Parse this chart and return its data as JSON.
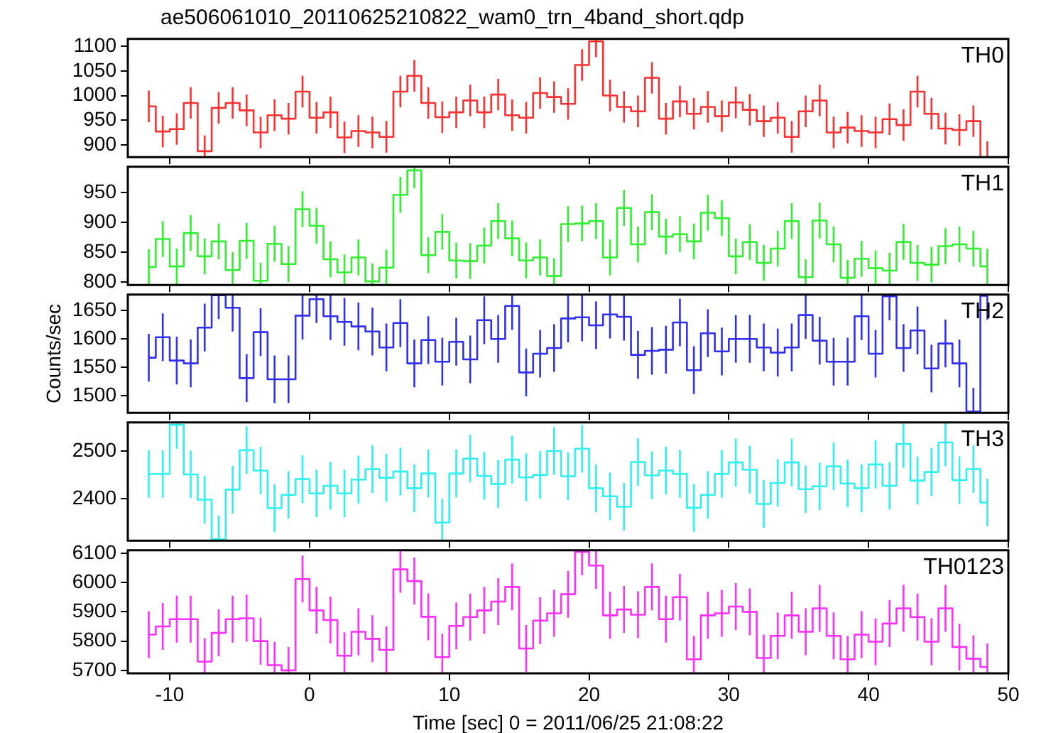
{
  "chart_data": [
    {
      "type": "step",
      "title": "ae506061010_20110625210822_wam0_trn_4band_short.qdp",
      "x": [
        -11.5,
        -10.5,
        -9.5,
        -8.5,
        -7.5,
        -6.5,
        -5.5,
        -4.5,
        -3.5,
        -2.5,
        -1.5,
        -0.5,
        0.5,
        1.5,
        2.5,
        3.5,
        4.5,
        5.5,
        6.5,
        7.5,
        8.5,
        9.5,
        10.5,
        11.5,
        12.5,
        13.5,
        14.5,
        15.5,
        16.5,
        17.5,
        18.5,
        19.5,
        20.5,
        21.5,
        22.5,
        23.5,
        24.5,
        25.5,
        26.5,
        27.5,
        28.5,
        29.5,
        30.5,
        31.5,
        32.5,
        33.5,
        34.5,
        35.5,
        36.5,
        37.5,
        38.5,
        39.5,
        40.5,
        41.5,
        42.5,
        43.5,
        44.5,
        45.5,
        46.5,
        47.5,
        48.5
      ],
      "xlim": [
        -13,
        50
      ],
      "xticks": [
        -10,
        0,
        10,
        20,
        30,
        40,
        50
      ],
      "ylim": [
        875,
        1115
      ],
      "yticks": [
        900,
        950,
        1000,
        1050,
        1100
      ],
      "tick_labels": "y",
      "grid": false,
      "series": [
        {
          "name": "TH0",
          "color": "#ff3030",
          "values": [
            978,
            927,
            932,
            985,
            887,
            975,
            985,
            970,
            925,
            960,
            953,
            1008,
            955,
            966,
            915,
            928,
            925,
            916,
            1008,
            1040,
            985,
            956,
            966,
            990,
            966,
            1002,
            960,
            955,
            1005,
            997,
            983,
            1062,
            1110,
            1000,
            977,
            968,
            1036,
            953,
            988,
            963,
            977,
            958,
            986,
            971,
            948,
            955,
            916,
            968,
            990,
            925,
            935,
            928,
            925,
            952,
            940,
            1008,
            963,
            933,
            930,
            948,
            875
          ],
          "errors": [
            32,
            32,
            32,
            32,
            32,
            32,
            32,
            32,
            32,
            32,
            32,
            32,
            32,
            32,
            32,
            32,
            32,
            32,
            32,
            32,
            32,
            32,
            32,
            32,
            32,
            32,
            32,
            32,
            32,
            32,
            32,
            32,
            32,
            32,
            32,
            32,
            32,
            32,
            32,
            32,
            32,
            32,
            32,
            32,
            32,
            32,
            32,
            32,
            32,
            32,
            32,
            32,
            32,
            32,
            32,
            32,
            32,
            32,
            32,
            32,
            32
          ]
        }
      ]
    },
    {
      "type": "step",
      "x": [
        -11.5,
        -10.5,
        -9.5,
        -8.5,
        -7.5,
        -6.5,
        -5.5,
        -4.5,
        -3.5,
        -2.5,
        -1.5,
        -0.5,
        0.5,
        1.5,
        2.5,
        3.5,
        4.5,
        5.5,
        6.5,
        7.5,
        8.5,
        9.5,
        10.5,
        11.5,
        12.5,
        13.5,
        14.5,
        15.5,
        16.5,
        17.5,
        18.5,
        19.5,
        20.5,
        21.5,
        22.5,
        23.5,
        24.5,
        25.5,
        26.5,
        27.5,
        28.5,
        29.5,
        30.5,
        31.5,
        32.5,
        33.5,
        34.5,
        35.5,
        36.5,
        37.5,
        38.5,
        39.5,
        40.5,
        41.5,
        42.5,
        43.5,
        44.5,
        45.5,
        46.5,
        47.5,
        48.5
      ],
      "xlim": [
        -13,
        50
      ],
      "xticks": [
        -10,
        0,
        10,
        20,
        30,
        40,
        50
      ],
      "ylim": [
        795,
        993
      ],
      "yticks": [
        800,
        850,
        900,
        950
      ],
      "tick_labels": "y",
      "grid": false,
      "series": [
        {
          "name": "TH1",
          "color": "#30f030",
          "values": [
            825,
            872,
            826,
            882,
            843,
            868,
            820,
            869,
            802,
            864,
            830,
            922,
            894,
            838,
            816,
            841,
            801,
            824,
            946,
            987,
            845,
            884,
            836,
            835,
            861,
            902,
            873,
            836,
            841,
            810,
            897,
            898,
            902,
            841,
            924,
            863,
            917,
            876,
            880,
            868,
            916,
            907,
            843,
            867,
            832,
            856,
            902,
            808,
            903,
            863,
            807,
            839,
            823,
            819,
            867,
            832,
            829,
            860,
            863,
            856,
            826
          ],
          "errors": [
            30,
            30,
            30,
            30,
            30,
            30,
            30,
            30,
            30,
            30,
            30,
            30,
            30,
            30,
            30,
            30,
            30,
            30,
            30,
            30,
            30,
            30,
            30,
            30,
            30,
            30,
            30,
            30,
            30,
            30,
            30,
            30,
            30,
            30,
            30,
            30,
            30,
            30,
            30,
            30,
            30,
            30,
            30,
            30,
            30,
            30,
            30,
            30,
            30,
            30,
            30,
            30,
            30,
            30,
            30,
            30,
            30,
            30,
            30,
            30,
            30
          ]
        }
      ]
    },
    {
      "type": "step",
      "ylabel": "Counts/sec",
      "x": [
        -11.5,
        -10.5,
        -9.5,
        -8.5,
        -7.5,
        -6.5,
        -5.5,
        -4.5,
        -3.5,
        -2.5,
        -1.5,
        -0.5,
        0.5,
        1.5,
        2.5,
        3.5,
        4.5,
        5.5,
        6.5,
        7.5,
        8.5,
        9.5,
        10.5,
        11.5,
        12.5,
        13.5,
        14.5,
        15.5,
        16.5,
        17.5,
        18.5,
        19.5,
        20.5,
        21.5,
        22.5,
        23.5,
        24.5,
        25.5,
        26.5,
        27.5,
        28.5,
        29.5,
        30.5,
        31.5,
        32.5,
        33.5,
        34.5,
        35.5,
        36.5,
        37.5,
        38.5,
        39.5,
        40.5,
        41.5,
        42.5,
        43.5,
        44.5,
        45.5,
        46.5,
        47.5,
        48.5
      ],
      "xlim": [
        -13,
        50
      ],
      "xticks": [
        -10,
        0,
        10,
        20,
        30,
        40,
        50
      ],
      "ylim": [
        1470,
        1678
      ],
      "yticks": [
        1500,
        1550,
        1600,
        1650
      ],
      "tick_labels": "y",
      "grid": false,
      "series": [
        {
          "name": "TH2",
          "color": "#3030f0",
          "values": [
            1567,
            1603,
            1562,
            1557,
            1620,
            1677,
            1655,
            1531,
            1612,
            1529,
            1529,
            1641,
            1670,
            1640,
            1630,
            1622,
            1613,
            1585,
            1628,
            1557,
            1598,
            1560,
            1595,
            1564,
            1633,
            1600,
            1658,
            1541,
            1574,
            1584,
            1636,
            1638,
            1624,
            1643,
            1639,
            1572,
            1579,
            1581,
            1629,
            1545,
            1610,
            1578,
            1600,
            1600,
            1585,
            1576,
            1585,
            1642,
            1597,
            1560,
            1560,
            1640,
            1574,
            1675,
            1584,
            1615,
            1548,
            1592,
            1557,
            1472,
            1676
          ],
          "errors": [
            42,
            42,
            42,
            42,
            42,
            42,
            42,
            42,
            42,
            42,
            42,
            42,
            42,
            42,
            42,
            42,
            42,
            42,
            42,
            42,
            42,
            42,
            42,
            42,
            42,
            42,
            42,
            42,
            42,
            42,
            42,
            42,
            42,
            42,
            42,
            42,
            42,
            42,
            42,
            42,
            42,
            42,
            42,
            42,
            42,
            42,
            42,
            42,
            42,
            42,
            42,
            42,
            42,
            42,
            42,
            42,
            42,
            42,
            42,
            42,
            42
          ]
        }
      ]
    },
    {
      "type": "step",
      "x": [
        -11.5,
        -10.5,
        -9.5,
        -8.5,
        -7.5,
        -6.5,
        -5.5,
        -4.5,
        -3.5,
        -2.5,
        -1.5,
        -0.5,
        0.5,
        1.5,
        2.5,
        3.5,
        4.5,
        5.5,
        6.5,
        7.5,
        8.5,
        9.5,
        10.5,
        11.5,
        12.5,
        13.5,
        14.5,
        15.5,
        16.5,
        17.5,
        18.5,
        19.5,
        20.5,
        21.5,
        22.5,
        23.5,
        24.5,
        25.5,
        26.5,
        27.5,
        28.5,
        29.5,
        30.5,
        31.5,
        32.5,
        33.5,
        34.5,
        35.5,
        36.5,
        37.5,
        38.5,
        39.5,
        40.5,
        41.5,
        42.5,
        43.5,
        44.5,
        45.5,
        46.5,
        47.5,
        48.5
      ],
      "xlim": [
        -13,
        50
      ],
      "xticks": [
        -10,
        0,
        10,
        20,
        30,
        40,
        50
      ],
      "ylim": [
        2312,
        2560
      ],
      "yticks": [
        2400,
        2500
      ],
      "tick_labels": "y",
      "grid": false,
      "series": [
        {
          "name": "TH3",
          "color": "#30f0f0",
          "values": [
            2452,
            2452,
            2555,
            2451,
            2398,
            2315,
            2419,
            2502,
            2459,
            2380,
            2408,
            2441,
            2411,
            2427,
            2411,
            2440,
            2462,
            2444,
            2457,
            2422,
            2453,
            2350,
            2453,
            2484,
            2448,
            2431,
            2482,
            2445,
            2450,
            2500,
            2447,
            2505,
            2422,
            2405,
            2383,
            2477,
            2449,
            2459,
            2452,
            2381,
            2408,
            2452,
            2476,
            2461,
            2389,
            2433,
            2476,
            2420,
            2426,
            2468,
            2432,
            2422,
            2472,
            2427,
            2515,
            2438,
            2456,
            2518,
            2439,
            2462,
            2392
          ],
          "errors": [
            50,
            50,
            50,
            50,
            50,
            50,
            50,
            50,
            50,
            50,
            50,
            50,
            50,
            50,
            50,
            50,
            50,
            50,
            50,
            50,
            50,
            50,
            50,
            50,
            50,
            50,
            50,
            50,
            50,
            50,
            50,
            50,
            50,
            50,
            50,
            50,
            50,
            50,
            50,
            50,
            50,
            50,
            50,
            50,
            50,
            50,
            50,
            50,
            50,
            50,
            50,
            50,
            50,
            50,
            50,
            50,
            50,
            50,
            50,
            50,
            50
          ]
        }
      ]
    },
    {
      "type": "step",
      "xlabel": "Time [sec] 0 = 2011/06/25 21:08:22",
      "x": [
        -11.5,
        -10.5,
        -9.5,
        -8.5,
        -7.5,
        -6.5,
        -5.5,
        -4.5,
        -3.5,
        -2.5,
        -1.5,
        -0.5,
        0.5,
        1.5,
        2.5,
        3.5,
        4.5,
        5.5,
        6.5,
        7.5,
        8.5,
        9.5,
        10.5,
        11.5,
        12.5,
        13.5,
        14.5,
        15.5,
        16.5,
        17.5,
        18.5,
        19.5,
        20.5,
        21.5,
        22.5,
        23.5,
        24.5,
        25.5,
        26.5,
        27.5,
        28.5,
        29.5,
        30.5,
        31.5,
        32.5,
        33.5,
        34.5,
        35.5,
        36.5,
        37.5,
        38.5,
        39.5,
        40.5,
        41.5,
        42.5,
        43.5,
        44.5,
        45.5,
        46.5,
        47.5,
        48.5
      ],
      "xlim": [
        -13,
        50
      ],
      "xticks": [
        -10,
        0,
        10,
        20,
        30,
        40,
        50
      ],
      "ylim": [
        5690,
        6110
      ],
      "yticks": [
        5700,
        5800,
        5900,
        6000,
        6100
      ],
      "grid": false,
      "series": [
        {
          "name": "TH0123",
          "color": "#ff30ff",
          "values": [
            5822,
            5850,
            5875,
            5875,
            5730,
            5828,
            5875,
            5878,
            5800,
            5718,
            5700,
            6012,
            5905,
            5872,
            5750,
            5832,
            5808,
            5770,
            6045,
            6005,
            5883,
            5745,
            5852,
            5882,
            5905,
            5935,
            5985,
            5775,
            5870,
            5895,
            5960,
            6105,
            6058,
            5888,
            5908,
            5890,
            5985,
            5875,
            5950,
            5738,
            5888,
            5895,
            5918,
            5900,
            5742,
            5818,
            5888,
            5832,
            5912,
            5818,
            5738,
            5822,
            5798,
            5860,
            5912,
            5882,
            5798,
            5912,
            5780,
            5740,
            5712
          ],
          "errors": [
            80,
            80,
            80,
            80,
            80,
            80,
            80,
            80,
            80,
            80,
            80,
            80,
            80,
            80,
            80,
            80,
            80,
            80,
            80,
            80,
            80,
            80,
            80,
            80,
            80,
            80,
            80,
            80,
            80,
            80,
            80,
            80,
            80,
            80,
            80,
            80,
            80,
            80,
            80,
            80,
            80,
            80,
            80,
            80,
            80,
            80,
            80,
            80,
            80,
            80,
            80,
            80,
            80,
            80,
            80,
            80,
            80,
            80,
            80,
            80,
            80
          ]
        }
      ]
    }
  ]
}
